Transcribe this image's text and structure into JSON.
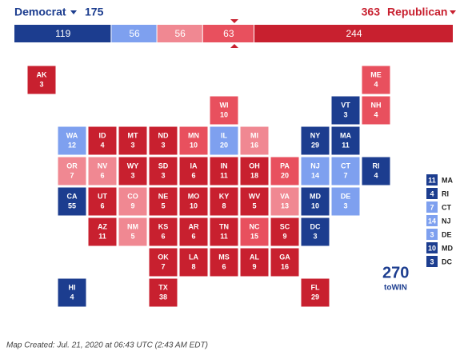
{
  "header": {
    "dem_label": "Democrat",
    "dem_total": 175,
    "rep_total": 363,
    "rep_label": "Republican"
  },
  "bar": {
    "segments": [
      {
        "value": 119,
        "color": "#1c3d8f"
      },
      {
        "value": 56,
        "color": "#7ea0ef"
      },
      {
        "value": 56,
        "color": "#f08892"
      },
      {
        "value": 63,
        "color": "#e8505e"
      },
      {
        "value": 244,
        "color": "#c8202f"
      }
    ]
  },
  "states": [
    {
      "abbr": "AK",
      "ev": 3,
      "rating": 4
    },
    {
      "abbr": "AL",
      "ev": 9,
      "rating": 4
    },
    {
      "abbr": "AR",
      "ev": 6,
      "rating": 4
    },
    {
      "abbr": "AZ",
      "ev": 11,
      "rating": 4
    },
    {
      "abbr": "CA",
      "ev": 55,
      "rating": 0
    },
    {
      "abbr": "CO",
      "ev": 9,
      "rating": 2
    },
    {
      "abbr": "CT",
      "ev": 7,
      "rating": 1
    },
    {
      "abbr": "DC",
      "ev": 3,
      "rating": 0
    },
    {
      "abbr": "DE",
      "ev": 3,
      "rating": 1
    },
    {
      "abbr": "FL",
      "ev": 29,
      "rating": 4
    },
    {
      "abbr": "GA",
      "ev": 16,
      "rating": 4
    },
    {
      "abbr": "HI",
      "ev": 4,
      "rating": 0
    },
    {
      "abbr": "IA",
      "ev": 6,
      "rating": 4
    },
    {
      "abbr": "ID",
      "ev": 4,
      "rating": 4
    },
    {
      "abbr": "IL",
      "ev": 20,
      "rating": 1
    },
    {
      "abbr": "IN",
      "ev": 11,
      "rating": 4
    },
    {
      "abbr": "KS",
      "ev": 6,
      "rating": 4
    },
    {
      "abbr": "KY",
      "ev": 8,
      "rating": 4
    },
    {
      "abbr": "LA",
      "ev": 8,
      "rating": 4
    },
    {
      "abbr": "MA",
      "ev": 11,
      "rating": 0
    },
    {
      "abbr": "MD",
      "ev": 10,
      "rating": 0
    },
    {
      "abbr": "ME",
      "ev": 4,
      "rating": 3
    },
    {
      "abbr": "MI",
      "ev": 16,
      "rating": 2
    },
    {
      "abbr": "MN",
      "ev": 10,
      "rating": 3
    },
    {
      "abbr": "MO",
      "ev": 10,
      "rating": 4
    },
    {
      "abbr": "MS",
      "ev": 6,
      "rating": 4
    },
    {
      "abbr": "MT",
      "ev": 3,
      "rating": 4
    },
    {
      "abbr": "NC",
      "ev": 15,
      "rating": 3
    },
    {
      "abbr": "ND",
      "ev": 3,
      "rating": 4
    },
    {
      "abbr": "NE",
      "ev": 5,
      "rating": 4
    },
    {
      "abbr": "NH",
      "ev": 4,
      "rating": 3
    },
    {
      "abbr": "NJ",
      "ev": 14,
      "rating": 1
    },
    {
      "abbr": "NM",
      "ev": 5,
      "rating": 2
    },
    {
      "abbr": "NV",
      "ev": 6,
      "rating": 2
    },
    {
      "abbr": "NY",
      "ev": 29,
      "rating": 0
    },
    {
      "abbr": "OH",
      "ev": 18,
      "rating": 4
    },
    {
      "abbr": "OK",
      "ev": 7,
      "rating": 4
    },
    {
      "abbr": "OR",
      "ev": 7,
      "rating": 2
    },
    {
      "abbr": "PA",
      "ev": 20,
      "rating": 3
    },
    {
      "abbr": "RI",
      "ev": 4,
      "rating": 0
    },
    {
      "abbr": "SC",
      "ev": 9,
      "rating": 4
    },
    {
      "abbr": "SD",
      "ev": 3,
      "rating": 4
    },
    {
      "abbr": "TN",
      "ev": 11,
      "rating": 4
    },
    {
      "abbr": "TX",
      "ev": 38,
      "rating": 4
    },
    {
      "abbr": "UT",
      "ev": 6,
      "rating": 4
    },
    {
      "abbr": "VA",
      "ev": 13,
      "rating": 2
    },
    {
      "abbr": "VT",
      "ev": 3,
      "rating": 0
    },
    {
      "abbr": "WA",
      "ev": 12,
      "rating": 1
    },
    {
      "abbr": "WI",
      "ev": 10,
      "rating": 3
    },
    {
      "abbr": "WV",
      "ev": 5,
      "rating": 4
    },
    {
      "abbr": "WY",
      "ev": 3,
      "rating": 4
    }
  ],
  "logo": {
    "number": "270",
    "text": "toWIN"
  },
  "footer": "Map Created: Jul. 21, 2020 at 06:43 UTC (2:43 AM EDT)"
}
